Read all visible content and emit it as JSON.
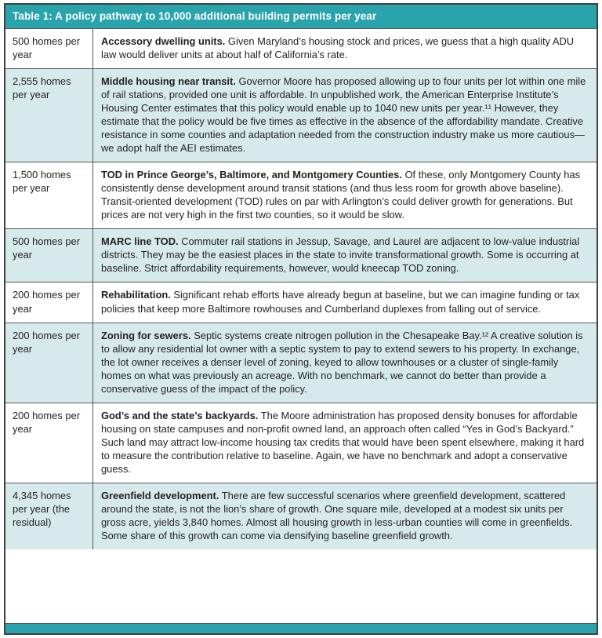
{
  "table": {
    "title": "Table 1: A policy pathway to 10,000 additional building permits per year",
    "colors": {
      "header_bg": "#29a4ac",
      "alt_row_bg": "#d7eaeb",
      "outer_border": "#3f4041",
      "row_divider": "#55565a",
      "text": "#231f20"
    },
    "rows": [
      {
        "amount": "500 homes per year",
        "title": "Accessory dwelling units.",
        "body": "Given Maryland’s housing stock and prices, we guess that a high quality ADU law would deliver units at about half of California’s rate."
      },
      {
        "amount": "2,555 homes per year",
        "title": "Middle housing near transit.",
        "body": "Governor Moore has proposed allowing up to four units per lot within one mile of rail stations, provided one unit is affordable. In unpublished work, the American Enterprise Institute’s Housing Center estimates that this policy would enable up to 1040 new units per year.¹¹ However, they estimate that the policy would be five times as effective in the absence of the affordability mandate. Creative resistance in some counties and adaptation needed from the construction industry make us more cautious—we adopt half the AEI estimates."
      },
      {
        "amount": "1,500 homes per year",
        "title": "TOD in Prince George’s, Baltimore, and Montgomery Counties.",
        "body": "Of these, only Montgomery County has consistently dense development around transit stations (and thus less room for growth above baseline). Transit-oriented development (TOD) rules on par with Arlington’s could deliver growth for generations. But prices are not very high in the first two counties, so it would be slow."
      },
      {
        "amount": "500 homes per year",
        "title": "MARC line TOD.",
        "body": "Commuter rail stations in Jessup, Savage, and Laurel are adjacent to low-value industrial districts. They may be the easiest places in the state to invite transformational growth. Some is occurring at baseline. Strict affordability requirements, however, would kneecap TOD zoning."
      },
      {
        "amount": "200 homes per year",
        "title": "Rehabilitation.",
        "body": "Significant rehab efforts have already begun at baseline, but we can imagine funding or tax policies that keep more Baltimore rowhouses and Cumberland duplexes from falling out of service."
      },
      {
        "amount": "200 homes per year",
        "title": "Zoning for sewers.",
        "body": "Septic systems create nitrogen pollution in the Chesapeake Bay.¹² A creative solution is to allow any residential lot owner with a septic system to pay to extend sewers to his property. In exchange, the lot owner receives a denser level of zoning, keyed to allow townhouses or a cluster of single-family homes on what was previously an acreage. With no benchmark, we cannot do better than provide a conservative guess of the impact of the policy."
      },
      {
        "amount": "200 homes per year",
        "title": "God’s and the state’s backyards.",
        "body": "The Moore administration has proposed density bonuses for affordable housing on state campuses and non-profit owned land, an approach often called “Yes in God’s Backyard.” Such land may attract low-income housing tax credits that would have been spent elsewhere, making it hard to measure the contribution relative to baseline. Again, we have no benchmark and adopt a conservative guess."
      },
      {
        "amount": "4,345 homes per year (the residual)",
        "title": "Greenfield development.",
        "body": "There are few successful scenarios where greenfield development, scattered around the state, is not the lion’s share of growth. One square mile, developed at a modest six units per gross acre, yields 3,840 homes. Almost all housing growth in less-urban counties will come in greenfields. Some share of this growth can come via densifying baseline greenfield growth."
      }
    ]
  }
}
